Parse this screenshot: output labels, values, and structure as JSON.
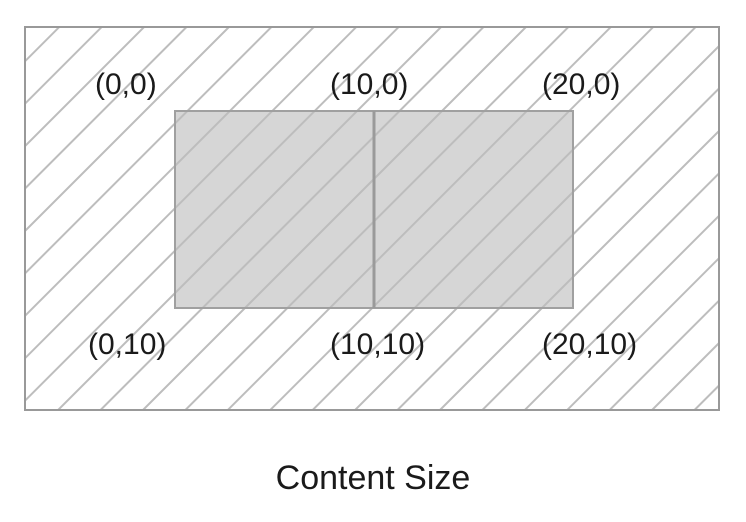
{
  "diagram": {
    "caption": "Content Size",
    "points": [
      {
        "label": "(0,0)"
      },
      {
        "label": "(10,0)"
      },
      {
        "label": "(20,0)"
      },
      {
        "label": "(0,10)"
      },
      {
        "label": "(10,10)"
      },
      {
        "label": "(20,10)"
      }
    ]
  },
  "colors": {
    "hatch": "#bdbdbd",
    "border": "#999999",
    "content_fill": "#d6d6d6",
    "divider": "#9a9a9a",
    "text": "#1a1a1a"
  }
}
